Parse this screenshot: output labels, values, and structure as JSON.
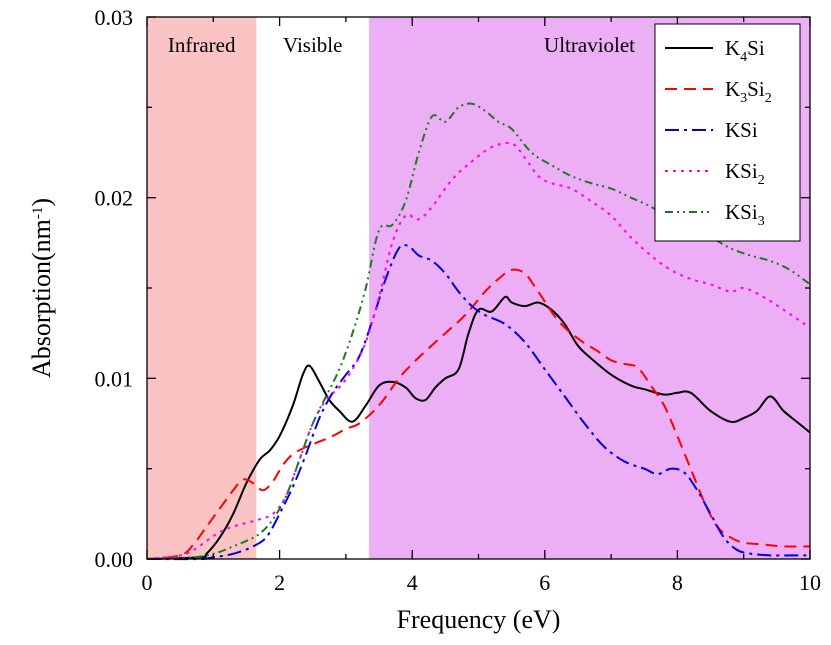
{
  "chart_data": {
    "type": "line",
    "xlabel": "Frequency (eV)",
    "ylabel": "Absorption(nm",
    "ylabel_sup": "-1",
    "ylabel_close": ")",
    "xlim": [
      0,
      10
    ],
    "ylim": [
      0,
      0.03
    ],
    "x_ticks": [
      0,
      2,
      4,
      6,
      8,
      10
    ],
    "x_tick_labels": [
      "0",
      "2",
      "4",
      "6",
      "8",
      "10"
    ],
    "y_ticks": [
      0,
      0.01,
      0.02,
      0.03
    ],
    "y_tick_labels": [
      "0.00",
      "0.01",
      "0.02",
      "0.03"
    ],
    "grid": false,
    "legend_position": "top-right",
    "regions": [
      {
        "label": "Infrared",
        "x_start": 0,
        "x_end": 1.65,
        "color": "#fbc4c4"
      },
      {
        "label": "Visible",
        "x_start": 1.65,
        "x_end": 3.35,
        "color": "#ffffff"
      },
      {
        "label": "Ultraviolet",
        "x_start": 3.35,
        "x_end": 10,
        "color": "#ecaef4"
      }
    ],
    "series": [
      {
        "base": "K",
        "sub1": "4",
        "mid": "Si",
        "sub2": "",
        "color": "#000000",
        "dash": "",
        "x": [
          0,
          0.8,
          0.9,
          1.1,
          1.3,
          1.5,
          1.7,
          1.85,
          2.0,
          2.2,
          2.35,
          2.45,
          2.6,
          2.75,
          2.9,
          3.1,
          3.3,
          3.5,
          3.7,
          3.9,
          4.05,
          4.2,
          4.35,
          4.5,
          4.7,
          4.85,
          5.0,
          5.2,
          5.4,
          5.5,
          5.7,
          5.9,
          6.1,
          6.3,
          6.5,
          6.7,
          7.0,
          7.3,
          7.5,
          7.8,
          8.0,
          8.2,
          8.5,
          8.8,
          9.0,
          9.2,
          9.4,
          9.6,
          9.8,
          10.0
        ],
        "values": [
          0,
          0.0001,
          0.0003,
          0.0012,
          0.0025,
          0.0042,
          0.0055,
          0.006,
          0.0068,
          0.0085,
          0.0102,
          0.0107,
          0.0098,
          0.0088,
          0.0082,
          0.0076,
          0.0085,
          0.0096,
          0.0098,
          0.0095,
          0.0089,
          0.0088,
          0.0095,
          0.01,
          0.0105,
          0.0125,
          0.0138,
          0.0137,
          0.0145,
          0.0142,
          0.014,
          0.0142,
          0.0138,
          0.013,
          0.0118,
          0.0111,
          0.0102,
          0.0096,
          0.0094,
          0.0091,
          0.0092,
          0.0092,
          0.0082,
          0.0076,
          0.0078,
          0.0082,
          0.009,
          0.0082,
          0.0076,
          0.007
        ]
      },
      {
        "base": "K",
        "sub1": "3",
        "mid": "Si",
        "sub2": "2",
        "color": "#ff0000",
        "dash": "12,7",
        "x": [
          0,
          0.5,
          0.7,
          0.9,
          1.1,
          1.3,
          1.45,
          1.6,
          1.75,
          1.9,
          2.05,
          2.2,
          2.4,
          2.6,
          2.8,
          3.0,
          3.2,
          3.5,
          3.8,
          4.0,
          4.2,
          4.5,
          4.8,
          5.1,
          5.3,
          5.5,
          5.7,
          5.9,
          6.2,
          6.5,
          6.8,
          7.0,
          7.2,
          7.4,
          7.6,
          7.8,
          8.0,
          8.2,
          8.4,
          8.6,
          8.8,
          9.0,
          9.3,
          9.6,
          10.0
        ],
        "values": [
          0,
          0.0002,
          0.0008,
          0.0018,
          0.0028,
          0.0038,
          0.0044,
          0.0042,
          0.0038,
          0.0043,
          0.0052,
          0.0058,
          0.0062,
          0.0065,
          0.0068,
          0.0072,
          0.0075,
          0.0085,
          0.01,
          0.0108,
          0.0115,
          0.0125,
          0.0135,
          0.0148,
          0.0155,
          0.016,
          0.0158,
          0.0148,
          0.0132,
          0.0122,
          0.0115,
          0.011,
          0.0108,
          0.0106,
          0.0096,
          0.0085,
          0.0068,
          0.005,
          0.0032,
          0.0018,
          0.0012,
          0.0009,
          0.0008,
          0.0007,
          0.0007
        ]
      },
      {
        "base": "KSi",
        "sub1": "",
        "mid": "",
        "sub2": "",
        "color": "#0000dd",
        "dash": "14,5,3,5",
        "x": [
          0,
          0.8,
          1.0,
          1.2,
          1.4,
          1.6,
          1.8,
          2.0,
          2.2,
          2.4,
          2.6,
          2.8,
          3.0,
          3.2,
          3.4,
          3.6,
          3.8,
          3.95,
          4.1,
          4.3,
          4.5,
          4.7,
          4.9,
          5.1,
          5.4,
          5.7,
          6.0,
          6.3,
          6.6,
          6.9,
          7.2,
          7.5,
          7.7,
          7.9,
          8.1,
          8.3,
          8.5,
          8.7,
          8.9,
          9.1,
          9.4,
          9.7,
          10.0
        ],
        "values": [
          0,
          0,
          0.0001,
          0.0002,
          0.0004,
          0.0007,
          0.0012,
          0.0025,
          0.004,
          0.0058,
          0.0078,
          0.0092,
          0.0102,
          0.0112,
          0.0132,
          0.0155,
          0.0172,
          0.0173,
          0.0168,
          0.0165,
          0.0158,
          0.0148,
          0.014,
          0.0135,
          0.013,
          0.012,
          0.0105,
          0.009,
          0.0075,
          0.0062,
          0.0054,
          0.005,
          0.0047,
          0.005,
          0.0048,
          0.0038,
          0.0025,
          0.0012,
          0.0005,
          0.0003,
          0.0002,
          0.0002,
          0.0002
        ]
      },
      {
        "base": "KSi",
        "sub1": "",
        "mid": "",
        "sub2": "2",
        "color": "#ff00ff",
        "dash": "3,5",
        "x": [
          0,
          0.5,
          0.7,
          0.9,
          1.1,
          1.3,
          1.5,
          1.7,
          1.9,
          2.1,
          2.3,
          2.5,
          2.7,
          2.9,
          3.1,
          3.3,
          3.5,
          3.7,
          3.9,
          4.1,
          4.3,
          4.6,
          4.9,
          5.2,
          5.5,
          5.7,
          5.9,
          6.1,
          6.4,
          6.7,
          7.0,
          7.3,
          7.6,
          7.9,
          8.2,
          8.5,
          8.8,
          9.0,
          9.3,
          9.6,
          10.0
        ],
        "values": [
          0,
          0.0002,
          0.0005,
          0.001,
          0.0015,
          0.0018,
          0.002,
          0.0022,
          0.0025,
          0.0035,
          0.0055,
          0.0075,
          0.0088,
          0.0095,
          0.0105,
          0.012,
          0.0145,
          0.0175,
          0.019,
          0.0188,
          0.0195,
          0.021,
          0.022,
          0.0228,
          0.023,
          0.0222,
          0.0212,
          0.0208,
          0.0205,
          0.0198,
          0.019,
          0.0178,
          0.0168,
          0.016,
          0.0155,
          0.0152,
          0.0148,
          0.015,
          0.0145,
          0.0138,
          0.0128
        ]
      },
      {
        "base": "KSi",
        "sub1": "",
        "mid": "",
        "sub2": "3",
        "color": "#227722",
        "dash": "8,4,2,4,2,4",
        "x": [
          0,
          0.7,
          0.9,
          1.1,
          1.3,
          1.5,
          1.7,
          1.9,
          2.1,
          2.3,
          2.5,
          2.7,
          2.9,
          3.1,
          3.3,
          3.5,
          3.7,
          3.9,
          4.1,
          4.3,
          4.5,
          4.7,
          4.9,
          5.1,
          5.3,
          5.5,
          5.8,
          6.1,
          6.4,
          6.7,
          7.0,
          7.3,
          7.6,
          7.9,
          8.2,
          8.5,
          8.8,
          9.1,
          9.4,
          9.7,
          10.0
        ],
        "values": [
          0,
          0.0001,
          0.0002,
          0.0004,
          0.0007,
          0.001,
          0.0014,
          0.0022,
          0.0035,
          0.0055,
          0.0075,
          0.009,
          0.0105,
          0.0125,
          0.015,
          0.0182,
          0.0185,
          0.0198,
          0.0225,
          0.0245,
          0.0242,
          0.025,
          0.0252,
          0.0248,
          0.0242,
          0.0238,
          0.0225,
          0.0218,
          0.0212,
          0.0208,
          0.0205,
          0.02,
          0.0195,
          0.0188,
          0.0182,
          0.0178,
          0.0172,
          0.0168,
          0.0165,
          0.016,
          0.0152
        ]
      }
    ]
  }
}
